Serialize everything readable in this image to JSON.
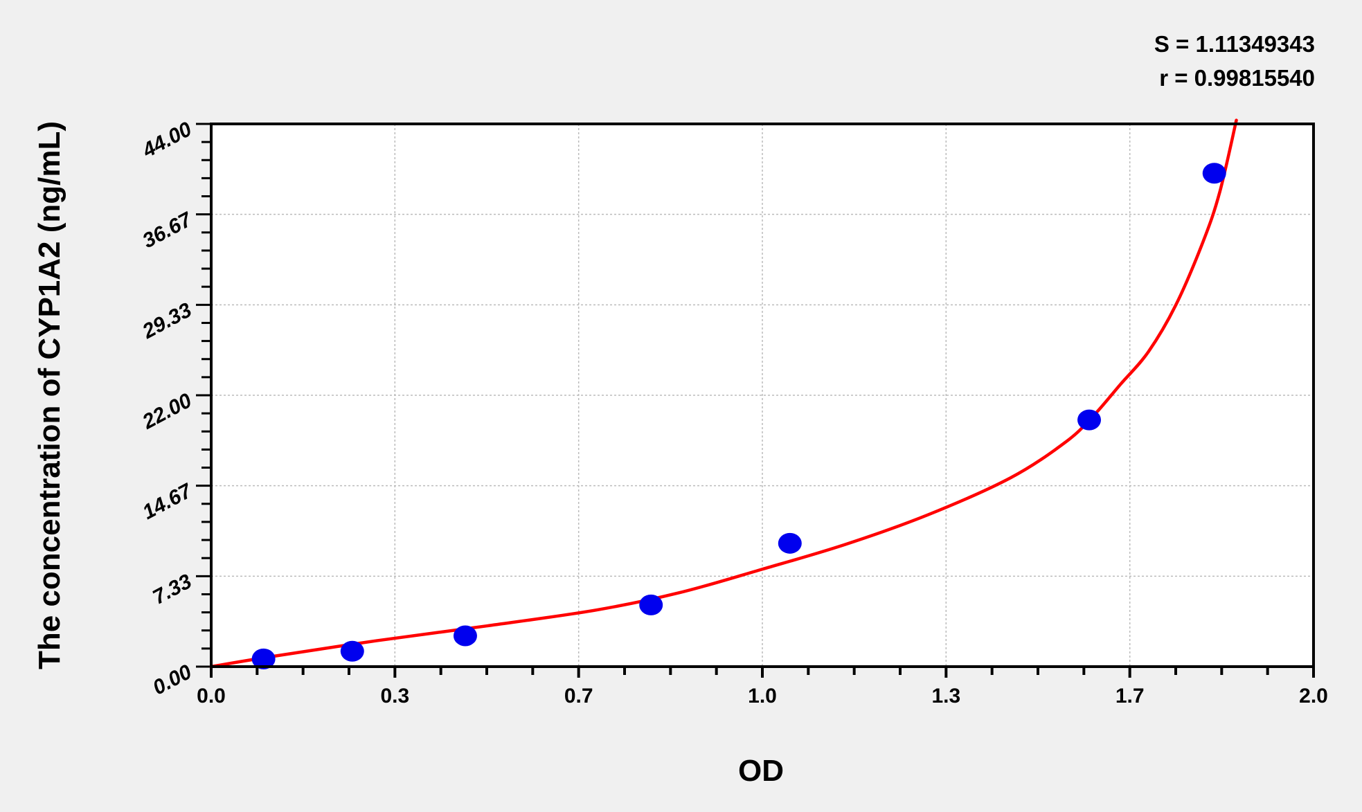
{
  "chart_data": {
    "type": "scatter",
    "title": "",
    "xlabel": "OD",
    "ylabel": "The concentration of CYP1A2 (ng/mL)",
    "xlim": [
      0,
      2.0
    ],
    "ylim": [
      0,
      44
    ],
    "x_ticks": [
      0,
      0.3333,
      0.6667,
      1.0,
      1.3333,
      1.6667,
      2.0
    ],
    "x_tick_labels": [
      "0.0",
      "0.3",
      "0.7",
      "1.0",
      "1.3",
      "1.7",
      "2.0"
    ],
    "y_ticks": [
      0,
      7.333,
      14.667,
      22,
      29.333,
      36.667,
      44
    ],
    "y_tick_labels": [
      "0.00",
      "7.33",
      "14.67",
      "22.00",
      "29.33",
      "36.67",
      "44.00"
    ],
    "grid": true,
    "annotations": [
      "S = 1.11349343",
      "r = 0.99815540"
    ],
    "series": [
      {
        "type": "scatter",
        "color": "#0000ee",
        "points": [
          {
            "x": 0.095,
            "y": 0.625
          },
          {
            "x": 0.256,
            "y": 1.25
          },
          {
            "x": 0.461,
            "y": 2.5
          },
          {
            "x": 0.798,
            "y": 5
          },
          {
            "x": 1.05,
            "y": 10
          },
          {
            "x": 1.593,
            "y": 20
          },
          {
            "x": 1.82,
            "y": 40
          }
        ]
      },
      {
        "type": "line",
        "color": "#ff0000",
        "points": [
          {
            "x": 0.0,
            "y": 0.0
          },
          {
            "x": 0.1,
            "y": 0.75
          },
          {
            "x": 0.3,
            "y": 2.1
          },
          {
            "x": 0.5,
            "y": 3.3
          },
          {
            "x": 0.7,
            "y": 4.6
          },
          {
            "x": 0.85,
            "y": 6.0
          },
          {
            "x": 1.0,
            "y": 7.9
          },
          {
            "x": 1.15,
            "y": 9.9
          },
          {
            "x": 1.3,
            "y": 12.3
          },
          {
            "x": 1.45,
            "y": 15.3
          },
          {
            "x": 1.55,
            "y": 18.2
          },
          {
            "x": 1.6,
            "y": 20.3
          },
          {
            "x": 1.65,
            "y": 22.9
          },
          {
            "x": 1.7,
            "y": 25.5
          },
          {
            "x": 1.75,
            "y": 29.3
          },
          {
            "x": 1.8,
            "y": 34.5
          },
          {
            "x": 1.83,
            "y": 38.5
          },
          {
            "x": 1.86,
            "y": 44.3
          }
        ]
      }
    ]
  }
}
